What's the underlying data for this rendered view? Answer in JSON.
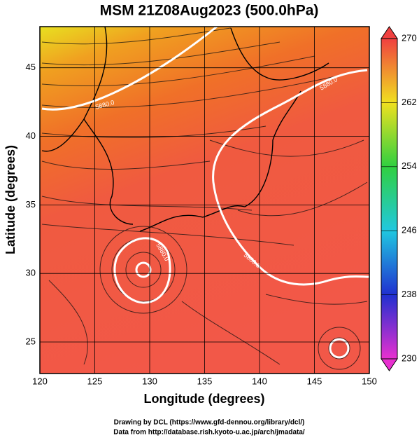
{
  "chart_data": {
    "type": "map",
    "title": "MSM 21Z08Aug2023 (500.0hPa)",
    "xlabel": "Longitude (degrees)",
    "ylabel": "Latitude  (degrees)",
    "xlim": [
      120,
      150
    ],
    "xticks": [
      120,
      125,
      130,
      135,
      140,
      145,
      150
    ],
    "ylim": [
      22.7,
      48
    ],
    "yticks": [
      25,
      30,
      35,
      40,
      45
    ],
    "grid": true,
    "colorbar": {
      "clim": [
        230,
        270
      ],
      "ticks": [
        230,
        238,
        246,
        254,
        262,
        270
      ],
      "colors": [
        "#e830d0",
        "#2030d0",
        "#20c8e0",
        "#30d040",
        "#f0e020",
        "#f04040"
      ]
    },
    "contour": {
      "value": 5880,
      "label": "5880.0"
    },
    "footer": [
      "Drawing by DCL (https://www.gfd-dennou.org/library/dcl/)",
      "Data from http://database.rish.kyoto-u.ac.jp/arch/jmadata/"
    ]
  }
}
